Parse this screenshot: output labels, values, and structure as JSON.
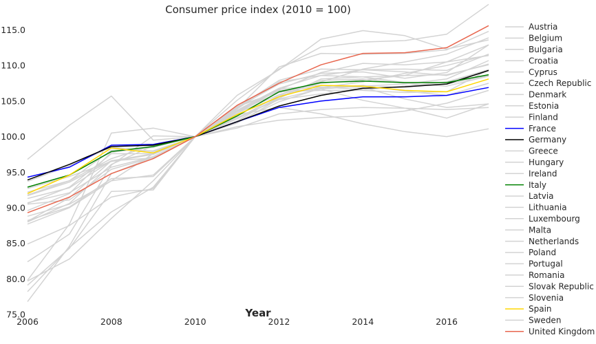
{
  "chart_data": {
    "type": "line",
    "title": "Consumer price index (2010 = 100)",
    "xlabel": "Year",
    "ylabel": "",
    "xlim": [
      2006,
      2017
    ],
    "ylim": [
      75,
      116.5
    ],
    "x_ticks": [
      2006,
      2008,
      2010,
      2012,
      2014,
      2016
    ],
    "y_ticks": [
      75.0,
      80.0,
      85.0,
      90.0,
      95.0,
      100.0,
      105.0,
      110.0,
      115.0
    ],
    "x_tick_labels": [
      "2006",
      "2008",
      "2010",
      "2012",
      "2014",
      "2016"
    ],
    "y_tick_labels": [
      "75.0",
      "80.0",
      "85.0",
      "90.0",
      "95.0",
      "100.0",
      "105.0",
      "110.0",
      "115.0"
    ],
    "grid": false,
    "legend_position": "right",
    "x": [
      2006,
      2007,
      2008,
      2009,
      2010,
      2011,
      2012,
      2013,
      2014,
      2015,
      2016,
      2017
    ],
    "series": [
      {
        "name": "Austria",
        "color": "#d3d3d3",
        "values": [
          91.7,
          93.6,
          96.6,
          97.0,
          100.0,
          103.3,
          105.9,
          107.7,
          109.5,
          110.5,
          111.6,
          113.9
        ]
      },
      {
        "name": "Belgium",
        "color": "#d3d3d3",
        "values": [
          91.8,
          93.8,
          98.1,
          98.0,
          100.0,
          103.5,
          106.2,
          107.5,
          108.0,
          108.6,
          110.5,
          112.9
        ]
      },
      {
        "name": "Bulgaria",
        "color": "#d3d3d3",
        "values": [
          76.8,
          84.6,
          94.8,
          97.1,
          100.0,
          104.2,
          106.3,
          106.7,
          105.1,
          104.0,
          102.6,
          104.6
        ]
      },
      {
        "name": "Croatia",
        "color": "#d3d3d3",
        "values": [
          88.0,
          90.6,
          96.1,
          98.7,
          100.0,
          102.2,
          105.6,
          107.9,
          108.1,
          107.5,
          107.1,
          108.5
        ]
      },
      {
        "name": "Cyprus",
        "color": "#d3d3d3",
        "values": [
          88.2,
          90.1,
          94.1,
          94.4,
          100.0,
          103.5,
          106.7,
          107.2,
          106.9,
          105.3,
          104.1,
          104.6
        ]
      },
      {
        "name": "Czech Republic",
        "color": "#d3d3d3",
        "values": [
          89.6,
          92.0,
          97.8,
          98.5,
          100.0,
          101.9,
          105.3,
          106.7,
          107.1,
          107.4,
          108.1,
          110.7
        ]
      },
      {
        "name": "Denmark",
        "color": "#d3d3d3",
        "values": [
          91.3,
          92.8,
          96.6,
          97.6,
          100.0,
          102.7,
          105.2,
          106.0,
          106.6,
          107.1,
          107.4,
          108.6
        ]
      },
      {
        "name": "Estonia",
        "color": "#d3d3d3",
        "values": [
          79.1,
          84.3,
          92.3,
          92.5,
          100.0,
          105.1,
          109.5,
          112.6,
          113.3,
          113.5,
          114.4,
          118.6
        ]
      },
      {
        "name": "Finland",
        "color": "#d3d3d3",
        "values": [
          90.7,
          92.1,
          95.7,
          97.2,
          100.0,
          103.3,
          106.6,
          109.0,
          110.3,
          110.1,
          110.5,
          111.4
        ]
      },
      {
        "name": "France",
        "color": "#0000ff",
        "values": [
          94.3,
          95.7,
          98.8,
          98.9,
          100.0,
          102.1,
          104.1,
          105.0,
          105.6,
          105.6,
          105.8,
          106.9
        ]
      },
      {
        "name": "Germany",
        "color": "#000000",
        "values": [
          93.9,
          96.1,
          98.6,
          98.8,
          100.0,
          102.1,
          104.3,
          105.8,
          106.8,
          107.0,
          107.4,
          109.3
        ]
      },
      {
        "name": "Greece",
        "color": "#d3d3d3",
        "values": [
          84.9,
          87.5,
          91.5,
          92.7,
          100.0,
          103.1,
          104.1,
          103.2,
          101.8,
          100.7,
          100.0,
          101.1
        ]
      },
      {
        "name": "Hungary",
        "color": "#d3d3d3",
        "values": [
          78.2,
          84.4,
          89.4,
          92.9,
          100.0,
          103.9,
          109.8,
          111.7,
          111.6,
          111.7,
          112.2,
          114.8
        ]
      },
      {
        "name": "Ireland",
        "color": "#d3d3d3",
        "values": [
          96.8,
          101.6,
          105.7,
          99.5,
          100.0,
          101.2,
          103.2,
          103.8,
          104.1,
          104.0,
          103.8,
          104.1
        ]
      },
      {
        "name": "Italy",
        "color": "#008000",
        "values": [
          92.9,
          94.6,
          97.9,
          98.6,
          100.0,
          102.9,
          106.3,
          107.6,
          107.8,
          107.6,
          107.6,
          108.7
        ]
      },
      {
        "name": "Latvia",
        "color": "#d3d3d3",
        "values": [
          79.8,
          87.7,
          100.5,
          101.2,
          100.0,
          104.3,
          106.3,
          106.5,
          106.5,
          106.2,
          106.3,
          109.4
        ]
      },
      {
        "name": "Lithuania",
        "color": "#d3d3d3",
        "values": [
          82.4,
          86.3,
          96.0,
          100.1,
          100.0,
          104.1,
          107.4,
          108.9,
          109.1,
          108.2,
          109.0,
          112.9
        ]
      },
      {
        "name": "Luxembourg",
        "color": "#d3d3d3",
        "values": [
          90.6,
          92.9,
          97.6,
          97.6,
          100.0,
          103.7,
          106.8,
          108.6,
          109.4,
          109.5,
          109.3,
          111.6
        ]
      },
      {
        "name": "Malta",
        "color": "#d3d3d3",
        "values": [
          90.5,
          91.1,
          95.4,
          97.1,
          100.0,
          102.5,
          105.8,
          106.9,
          107.7,
          108.9,
          110.0,
          111.5
        ]
      },
      {
        "name": "Netherlands",
        "color": "#d3d3d3",
        "values": [
          92.7,
          94.4,
          96.5,
          97.5,
          100.0,
          102.5,
          105.4,
          108.1,
          108.4,
          108.6,
          108.7,
          110.1
        ]
      },
      {
        "name": "Poland",
        "color": "#d3d3d3",
        "values": [
          87.7,
          90.0,
          93.8,
          97.6,
          100.0,
          103.9,
          107.7,
          108.6,
          108.4,
          107.6,
          107.6,
          109.4
        ]
      },
      {
        "name": "Portugal",
        "color": "#d3d3d3",
        "values": [
          93.7,
          95.9,
          98.5,
          97.9,
          100.0,
          103.6,
          106.5,
          107.0,
          106.6,
          107.1,
          107.7,
          109.4
        ]
      },
      {
        "name": "Romania",
        "color": "#d3d3d3",
        "values": [
          79.7,
          82.8,
          88.5,
          93.8,
          100.0,
          105.8,
          109.4,
          113.7,
          114.9,
          114.2,
          112.3,
          113.6
        ]
      },
      {
        "name": "Slovak Republic",
        "color": "#d3d3d3",
        "values": [
          88.8,
          90.5,
          93.8,
          94.6,
          100.0,
          104.1,
          107.9,
          109.5,
          109.4,
          109.1,
          108.6,
          110.2
        ]
      },
      {
        "name": "Slovenia",
        "color": "#d3d3d3",
        "values": [
          88.1,
          91.4,
          96.6,
          97.5,
          100.0,
          102.1,
          104.9,
          106.8,
          107.2,
          106.4,
          105.8,
          107.5
        ]
      },
      {
        "name": "Spain",
        "color": "#ffd700",
        "values": [
          92.0,
          94.6,
          98.4,
          97.7,
          100.0,
          103.1,
          105.6,
          107.2,
          107.1,
          106.5,
          106.3,
          108.1
        ]
      },
      {
        "name": "Sweden",
        "color": "#d3d3d3",
        "values": [
          92.2,
          93.8,
          96.9,
          98.8,
          100.0,
          101.4,
          102.3,
          102.7,
          102.9,
          103.6,
          104.7,
          106.5
        ]
      },
      {
        "name": "United Kingdom",
        "color": "#e8664e",
        "values": [
          89.3,
          91.5,
          94.8,
          96.9,
          100.0,
          104.4,
          107.5,
          110.1,
          111.7,
          111.8,
          112.5,
          115.6
        ]
      }
    ]
  }
}
